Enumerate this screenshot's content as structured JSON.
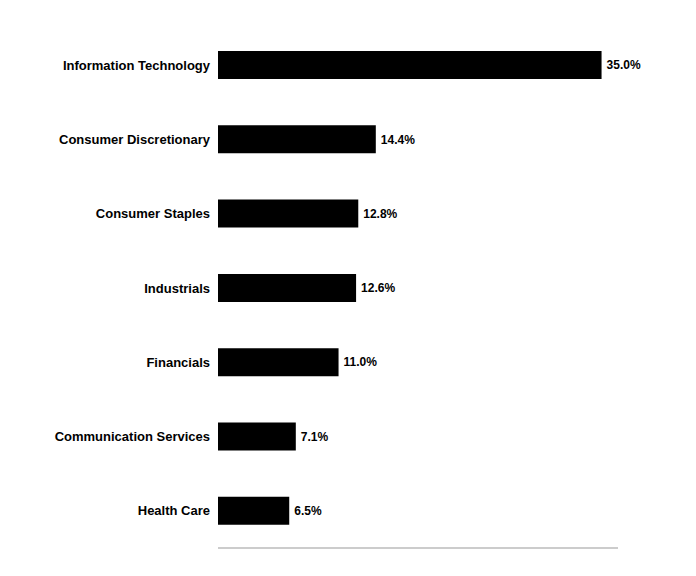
{
  "chart_data": {
    "type": "bar",
    "orientation": "horizontal",
    "categories": [
      "Information Technology",
      "Consumer Discretionary",
      "Consumer Staples",
      "Industrials",
      "Financials",
      "Communication Services",
      "Health Care"
    ],
    "values": [
      35.0,
      14.4,
      12.8,
      12.6,
      11.0,
      7.1,
      6.5
    ],
    "value_labels": [
      "35.0%",
      "14.4%",
      "12.8%",
      "12.6%",
      "11.0%",
      "7.1%",
      "6.5%"
    ],
    "data_labels": true,
    "color": "#000000",
    "xlim": [
      0,
      36.5
    ],
    "tick_labels": "y",
    "grid": false
  }
}
